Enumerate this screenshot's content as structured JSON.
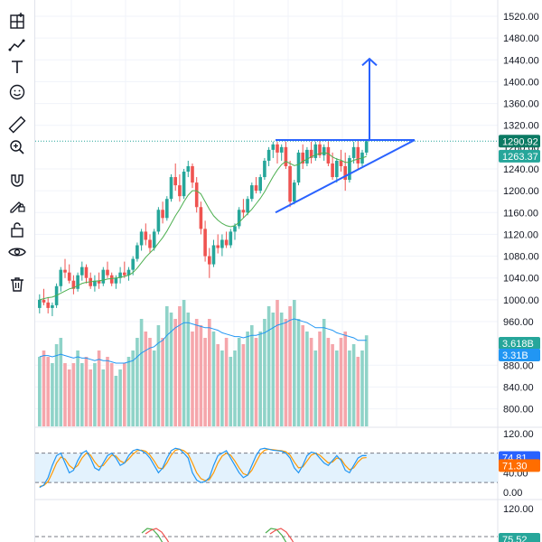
{
  "toolbar": {
    "tools": [
      {
        "name": "grid-layout-icon"
      },
      {
        "name": "trend-line-icon"
      },
      {
        "name": "text-tool-icon"
      },
      {
        "name": "emoji-icon"
      },
      {
        "name": "ruler-icon"
      },
      {
        "name": "zoom-in-icon"
      },
      {
        "name": "magnet-icon"
      },
      {
        "name": "lock-drawings-icon"
      },
      {
        "name": "unlock-icon"
      },
      {
        "name": "eye-icon"
      },
      {
        "name": "trash-icon"
      }
    ]
  },
  "colors": {
    "up": "#26a69a",
    "down": "#ef5350",
    "volume_up": "#8fd3c8",
    "volume_down": "#f5a6ab",
    "ma_line": "#4caf50",
    "volume_ma": "#2196f3",
    "drawing": "#2962ff",
    "stoch_k": "#2196f3",
    "stoch_d": "#ff9800",
    "macd_red": "#ef5350",
    "macd_green": "#4caf50",
    "band_fill": "#e3f2fd",
    "grid": "#f0f3fa",
    "price_tag_green": "#26a69a",
    "price_tag_dark": "#0b7a63",
    "stoch_tag_blue": "#2962ff",
    "stoch_tag_orange": "#ff6d00"
  },
  "price_axis": {
    "ticks": [
      "1520.00",
      "1480.00",
      "1440.00",
      "1400.00",
      "1360.00",
      "1320.00",
      "1240.00",
      "1200.00",
      "1160.00",
      "1120.00",
      "1080.00",
      "1040.00",
      "1000.00",
      "960.00",
      "880.00",
      "840.00",
      "800.00"
    ],
    "tick_values": [
      1520,
      1480,
      1440,
      1400,
      1360,
      1320,
      1240,
      1200,
      1160,
      1120,
      1080,
      1040,
      1000,
      960,
      880,
      840,
      800
    ],
    "last_price": "1290.92",
    "last_price_value": 1290.92,
    "partial_label": "1280.00",
    "ma_price": "1263.37",
    "ma_price_value": 1263.37
  },
  "volume_axis": {
    "volume_tag": "3.618B",
    "volume_ma_tag": "3.31B"
  },
  "stoch_axis": {
    "ticks": [
      "120.00",
      "40.00",
      "0.00"
    ],
    "tick_values": [
      120,
      40,
      0
    ],
    "k_value": "74.81",
    "d_value": "71.30",
    "k_num": 74.81,
    "d_num": 71.3,
    "band_upper": 80,
    "band_lower": 20
  },
  "macd_axis": {
    "ticks": [
      "120.00"
    ],
    "value_tag": "75.52"
  },
  "chart_data": {
    "type": "candlestick",
    "candles": [
      [
        985,
        1010,
        975,
        1000
      ],
      [
        1000,
        1020,
        990,
        995
      ],
      [
        995,
        1005,
        975,
        985
      ],
      [
        985,
        995,
        970,
        990
      ],
      [
        990,
        1030,
        985,
        1025
      ],
      [
        1025,
        1060,
        1015,
        1055
      ],
      [
        1055,
        1075,
        1040,
        1050
      ],
      [
        1050,
        1065,
        1030,
        1035
      ],
      [
        1035,
        1045,
        1010,
        1020
      ],
      [
        1020,
        1050,
        1015,
        1045
      ],
      [
        1045,
        1070,
        1035,
        1060
      ],
      [
        1060,
        1065,
        1030,
        1040
      ],
      [
        1040,
        1050,
        1020,
        1025
      ],
      [
        1025,
        1045,
        1015,
        1035
      ],
      [
        1035,
        1050,
        1020,
        1030
      ],
      [
        1030,
        1060,
        1025,
        1055
      ],
      [
        1055,
        1070,
        1040,
        1045
      ],
      [
        1045,
        1050,
        1025,
        1030
      ],
      [
        1030,
        1045,
        1020,
        1040
      ],
      [
        1040,
        1060,
        1030,
        1050
      ],
      [
        1050,
        1070,
        1040,
        1045
      ],
      [
        1045,
        1060,
        1035,
        1055
      ],
      [
        1055,
        1080,
        1045,
        1075
      ],
      [
        1075,
        1105,
        1070,
        1100
      ],
      [
        1100,
        1130,
        1090,
        1125
      ],
      [
        1125,
        1140,
        1100,
        1110
      ],
      [
        1110,
        1120,
        1085,
        1095
      ],
      [
        1095,
        1130,
        1090,
        1125
      ],
      [
        1125,
        1170,
        1120,
        1165
      ],
      [
        1165,
        1180,
        1140,
        1150
      ],
      [
        1150,
        1190,
        1145,
        1185
      ],
      [
        1185,
        1230,
        1180,
        1225
      ],
      [
        1225,
        1250,
        1200,
        1210
      ],
      [
        1210,
        1230,
        1180,
        1190
      ],
      [
        1190,
        1240,
        1185,
        1235
      ],
      [
        1235,
        1255,
        1225,
        1245
      ],
      [
        1245,
        1250,
        1205,
        1215
      ],
      [
        1215,
        1225,
        1160,
        1170
      ],
      [
        1170,
        1180,
        1120,
        1130
      ],
      [
        1130,
        1145,
        1070,
        1080
      ],
      [
        1080,
        1095,
        1040,
        1065
      ],
      [
        1065,
        1110,
        1060,
        1100
      ],
      [
        1100,
        1120,
        1085,
        1095
      ],
      [
        1095,
        1120,
        1080,
        1110
      ],
      [
        1110,
        1125,
        1095,
        1100
      ],
      [
        1100,
        1130,
        1095,
        1125
      ],
      [
        1125,
        1140,
        1110,
        1135
      ],
      [
        1135,
        1170,
        1130,
        1165
      ],
      [
        1165,
        1185,
        1150,
        1160
      ],
      [
        1160,
        1190,
        1155,
        1185
      ],
      [
        1185,
        1215,
        1180,
        1210
      ],
      [
        1210,
        1225,
        1195,
        1200
      ],
      [
        1200,
        1230,
        1195,
        1225
      ],
      [
        1225,
        1260,
        1220,
        1255
      ],
      [
        1255,
        1280,
        1245,
        1275
      ],
      [
        1275,
        1290,
        1260,
        1285
      ],
      [
        1285,
        1290,
        1250,
        1270
      ],
      [
        1270,
        1285,
        1255,
        1280
      ],
      [
        1280,
        1290,
        1240,
        1245
      ],
      [
        1245,
        1255,
        1170,
        1180
      ],
      [
        1180,
        1220,
        1175,
        1215
      ],
      [
        1215,
        1275,
        1210,
        1270
      ],
      [
        1270,
        1285,
        1240,
        1250
      ],
      [
        1250,
        1280,
        1245,
        1275
      ],
      [
        1275,
        1290,
        1250,
        1260
      ],
      [
        1260,
        1290,
        1255,
        1285
      ],
      [
        1285,
        1293,
        1260,
        1265
      ],
      [
        1265,
        1285,
        1255,
        1280
      ],
      [
        1280,
        1290,
        1245,
        1250
      ],
      [
        1250,
        1270,
        1220,
        1225
      ],
      [
        1225,
        1260,
        1215,
        1255
      ],
      [
        1255,
        1275,
        1235,
        1245
      ],
      [
        1245,
        1270,
        1200,
        1220
      ],
      [
        1220,
        1265,
        1215,
        1260
      ],
      [
        1260,
        1290,
        1250,
        1280
      ],
      [
        1280,
        1292,
        1240,
        1250
      ],
      [
        1250,
        1275,
        1245,
        1270
      ],
      [
        1270,
        1292,
        1265,
        1291
      ]
    ],
    "ma": [
      1000,
      1002,
      1004,
      1005,
      1008,
      1012,
      1016,
      1020,
      1022,
      1026,
      1030,
      1032,
      1033,
      1034,
      1035,
      1036,
      1038,
      1039,
      1040,
      1041,
      1043,
      1045,
      1050,
      1058,
      1068,
      1078,
      1086,
      1094,
      1104,
      1114,
      1126,
      1140,
      1154,
      1166,
      1180,
      1192,
      1200,
      1200,
      1194,
      1180,
      1166,
      1154,
      1146,
      1140,
      1136,
      1134,
      1136,
      1142,
      1150,
      1158,
      1166,
      1176,
      1186,
      1198,
      1212,
      1226,
      1238,
      1248,
      1254,
      1250,
      1246,
      1248,
      1254,
      1258,
      1262,
      1266,
      1268,
      1270,
      1268,
      1262,
      1258,
      1256,
      1252,
      1252,
      1256,
      1258,
      1260,
      1263
    ],
    "volume": [
      0.55,
      0.6,
      0.55,
      0.5,
      0.65,
      0.7,
      0.5,
      0.45,
      0.5,
      0.6,
      0.5,
      0.55,
      0.45,
      0.5,
      0.6,
      0.45,
      0.55,
      0.5,
      0.4,
      0.45,
      0.5,
      0.55,
      0.6,
      0.7,
      0.85,
      0.75,
      0.7,
      0.6,
      0.8,
      0.7,
      0.95,
      0.9,
      0.85,
      0.95,
      1.0,
      0.9,
      0.75,
      0.85,
      0.8,
      0.7,
      0.85,
      0.75,
      0.65,
      0.6,
      0.7,
      0.55,
      0.6,
      0.7,
      0.65,
      0.75,
      0.8,
      0.7,
      0.75,
      0.85,
      0.95,
      0.9,
      1.0,
      0.9,
      0.85,
      0.95,
      1.0,
      0.85,
      0.8,
      0.75,
      0.7,
      0.6,
      0.75,
      0.85,
      0.7,
      0.65,
      0.6,
      0.7,
      0.75,
      0.6,
      0.65,
      0.55,
      0.6,
      0.72
    ],
    "volume_ma": [
      0.55,
      0.56,
      0.56,
      0.55,
      0.56,
      0.57,
      0.56,
      0.55,
      0.54,
      0.55,
      0.54,
      0.54,
      0.53,
      0.52,
      0.53,
      0.52,
      0.52,
      0.51,
      0.5,
      0.5,
      0.5,
      0.51,
      0.52,
      0.55,
      0.58,
      0.6,
      0.62,
      0.63,
      0.66,
      0.68,
      0.72,
      0.75,
      0.78,
      0.8,
      0.82,
      0.82,
      0.81,
      0.8,
      0.79,
      0.78,
      0.78,
      0.77,
      0.76,
      0.74,
      0.73,
      0.72,
      0.71,
      0.71,
      0.7,
      0.71,
      0.72,
      0.72,
      0.73,
      0.74,
      0.76,
      0.78,
      0.8,
      0.81,
      0.82,
      0.84,
      0.85,
      0.84,
      0.83,
      0.82,
      0.8,
      0.78,
      0.78,
      0.78,
      0.77,
      0.76,
      0.74,
      0.73,
      0.72,
      0.71,
      0.7,
      0.68,
      0.68,
      0.68
    ],
    "stoch_k": [
      10,
      15,
      30,
      55,
      75,
      80,
      60,
      40,
      45,
      65,
      80,
      85,
      70,
      50,
      45,
      60,
      75,
      80,
      70,
      55,
      60,
      75,
      85,
      88,
      85,
      80,
      70,
      55,
      40,
      50,
      70,
      85,
      90,
      88,
      80,
      70,
      40,
      25,
      20,
      22,
      30,
      55,
      75,
      80,
      85,
      70,
      55,
      40,
      30,
      35,
      55,
      75,
      88,
      90,
      88,
      86,
      85,
      84,
      80,
      70,
      50,
      40,
      55,
      75,
      82,
      80,
      70,
      60,
      55,
      65,
      75,
      65,
      45,
      40,
      55,
      70,
      75,
      75
    ],
    "stoch_d": [
      12,
      14,
      22,
      40,
      60,
      72,
      68,
      55,
      48,
      55,
      70,
      80,
      76,
      62,
      52,
      55,
      66,
      76,
      74,
      64,
      60,
      68,
      78,
      85,
      86,
      84,
      76,
      64,
      50,
      48,
      60,
      76,
      86,
      88,
      85,
      78,
      60,
      40,
      28,
      24,
      26,
      40,
      60,
      74,
      80,
      76,
      64,
      50,
      38,
      35,
      45,
      62,
      78,
      86,
      88,
      87,
      86,
      85,
      83,
      76,
      62,
      50,
      52,
      64,
      76,
      80,
      76,
      68,
      60,
      62,
      70,
      68,
      55,
      46,
      50,
      62,
      70,
      71
    ],
    "macd_green": [
      120,
      130,
      128,
      115,
      95,
      80
    ],
    "macd_red": [
      118,
      126,
      130,
      122,
      105,
      85
    ]
  }
}
